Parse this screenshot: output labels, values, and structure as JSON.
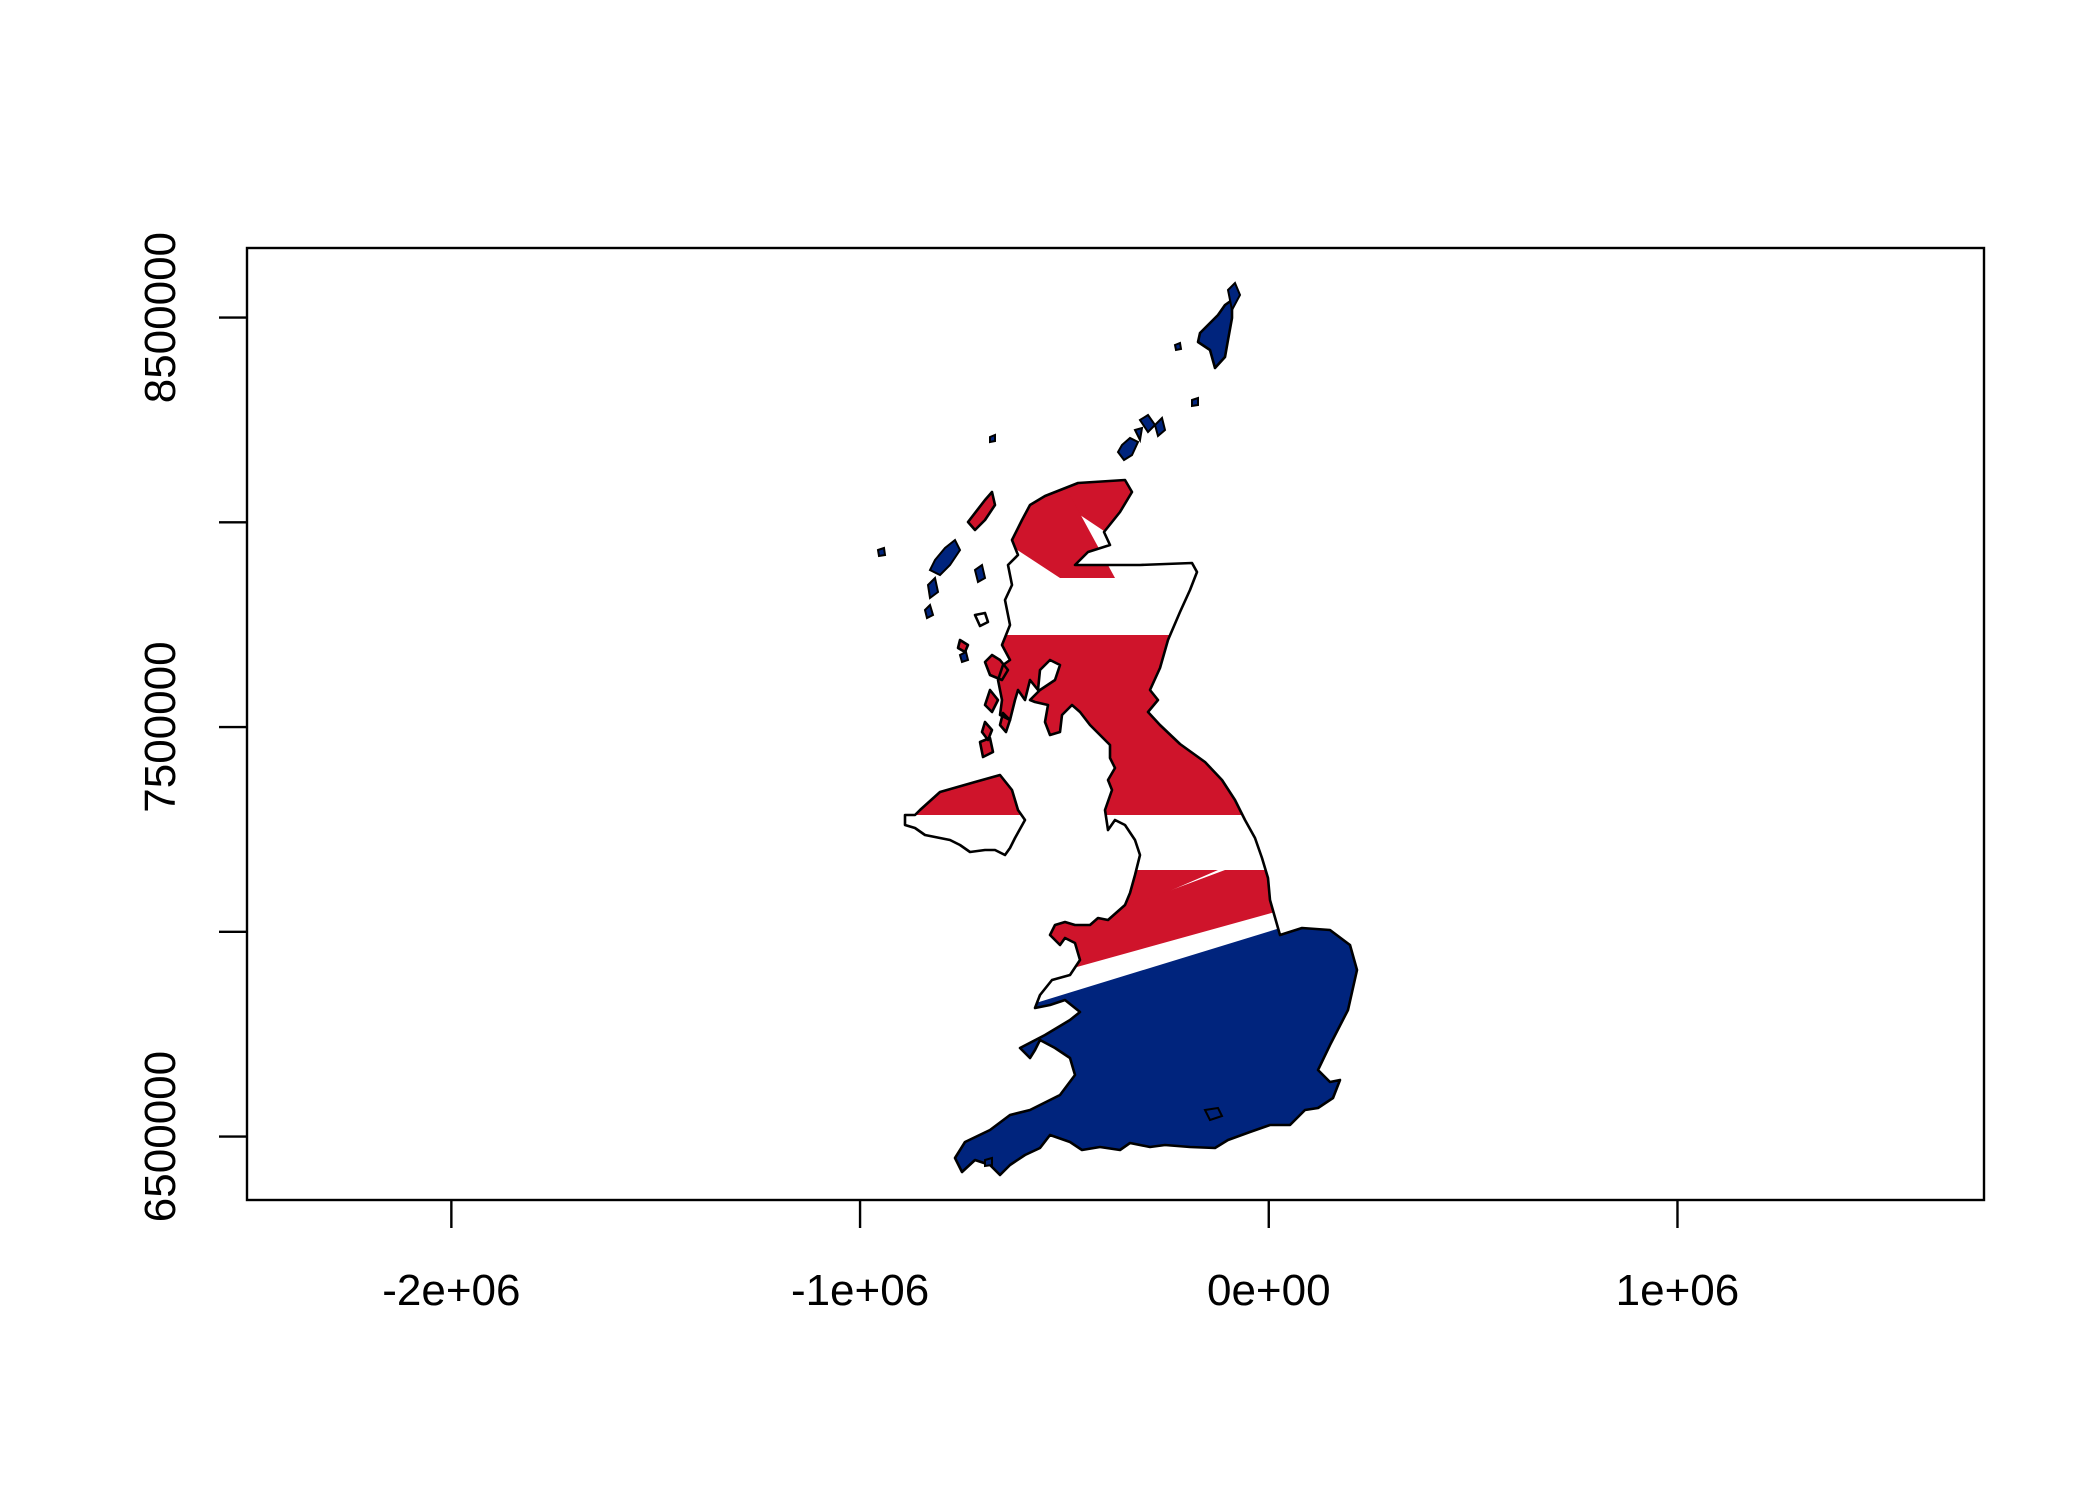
{
  "plot": {
    "x_axis": {
      "range": [
        -2500000,
        1750000
      ],
      "ticks": [
        {
          "value": -2000000,
          "label": "-2e+06"
        },
        {
          "value": -1000000,
          "label": "-1e+06"
        },
        {
          "value": 0,
          "label": "0e+00"
        },
        {
          "value": 1000000,
          "label": "1e+06"
        }
      ]
    },
    "y_axis": {
      "range": [
        6345000,
        8670000
      ],
      "ticks": [
        {
          "value": 6500000,
          "label": "6500000"
        },
        {
          "value": 7000000,
          "label": ""
        },
        {
          "value": 7500000,
          "label": "7500000"
        },
        {
          "value": 8000000,
          "label": ""
        },
        {
          "value": 8500000,
          "label": "8500000"
        }
      ]
    },
    "fill": "union-flag",
    "colors": {
      "red": "#CF142B",
      "white": "#FFFFFF",
      "blue": "#00247D",
      "outline": "#000000"
    }
  }
}
